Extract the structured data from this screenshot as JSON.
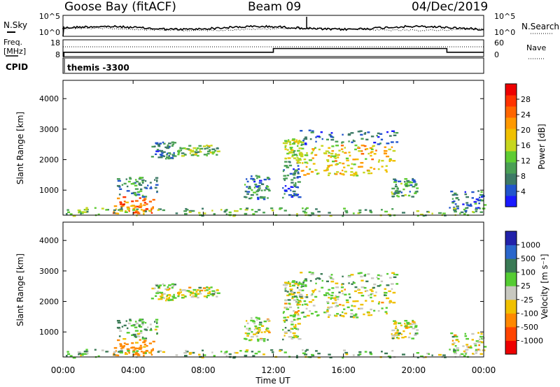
{
  "header": {
    "station": "Goose Bay (fitACF)",
    "beam": "Beam 09",
    "date": "04/Dec/2019"
  },
  "panels": {
    "noise": {
      "left_label": "N.Sky",
      "right_label": "N.Search",
      "left_ticks": [
        "10^5",
        "10^0"
      ],
      "right_ticks": [
        "10^5",
        "10^0"
      ]
    },
    "freq": {
      "left_label_1": "Freq.",
      "left_label_2": "[MHz]",
      "right_label": "Nave",
      "left_ticks": [
        "18",
        "8"
      ],
      "right_ticks": [
        "60",
        "0"
      ]
    },
    "cpid": {
      "label": "CPID",
      "value": "themis -3300"
    }
  },
  "axes": {
    "ylabel": "Slant Range [km]",
    "xlabel": "Time UT",
    "xticks": [
      "00:00",
      "04:00",
      "08:00",
      "12:00",
      "16:00",
      "20:00",
      "00:00"
    ],
    "yticks": [
      "1000",
      "2000",
      "3000",
      "4000"
    ]
  },
  "colorbars": {
    "power": {
      "label": "Power [dB]",
      "ticks": [
        "4",
        "8",
        "12",
        "16",
        "20",
        "24",
        "28"
      ],
      "colors": [
        "#1a1aff",
        "#2255cc",
        "#3d7a66",
        "#4a9f55",
        "#5fcc33",
        "#c6d61f",
        "#f0c000",
        "#ff9900",
        "#ff6600",
        "#ff3300",
        "#ee0000"
      ]
    },
    "velocity": {
      "label": "Velocity [m s⁻¹]",
      "ticks": [
        "1000",
        "500",
        "100",
        "25",
        "-25",
        "-100",
        "-500",
        "-1000"
      ],
      "colors": [
        "#2222aa",
        "#2a66cc",
        "#3a7a55",
        "#55cc33",
        "#c8c8c0",
        "#f0c000",
        "#ff8800",
        "#ff4400",
        "#ee0000"
      ]
    }
  },
  "chart_data": {
    "type": "heatmap",
    "x_range_hours": [
      0,
      24
    ],
    "y_range_km": [
      180,
      4600
    ],
    "power_scale_db": [
      0,
      30
    ],
    "velocity_scale_ms": [
      -1000,
      1000
    ],
    "noise_log10": [
      0,
      5
    ],
    "freq_mhz_range": [
      8,
      18
    ],
    "nave_range": [
      0,
      60
    ],
    "freq_segments": [
      {
        "start": 0.0,
        "end": 0.05,
        "mhz": 8
      },
      {
        "start": 0.05,
        "end": 12.0,
        "mhz": 10.6
      },
      {
        "start": 12.0,
        "end": 21.9,
        "mhz": 12.8
      },
      {
        "start": 21.9,
        "end": 24.0,
        "mhz": 10.6
      }
    ],
    "echo_regions": [
      {
        "t0": 2.8,
        "t1": 5.2,
        "r0": 250,
        "r1": 800,
        "p": 23,
        "v": -200
      },
      {
        "t0": 3.0,
        "t1": 5.4,
        "r0": 800,
        "r1": 1500,
        "p": 8,
        "v": 80
      },
      {
        "t0": 5.0,
        "t1": 6.3,
        "r0": 2050,
        "r1": 2600,
        "p": 7,
        "v": 0
      },
      {
        "t0": 6.5,
        "t1": 8.8,
        "r0": 2150,
        "r1": 2500,
        "p": 12,
        "v": 0
      },
      {
        "t0": 10.3,
        "t1": 11.8,
        "r0": 700,
        "r1": 1500,
        "p": 7,
        "v": 0
      },
      {
        "t0": 12.5,
        "t1": 13.4,
        "r0": 700,
        "r1": 2000,
        "p": 6,
        "v": 0
      },
      {
        "t0": 12.5,
        "t1": 13.6,
        "r0": 2000,
        "r1": 2700,
        "p": 14,
        "v": 30
      },
      {
        "t0": 13.3,
        "t1": 16.8,
        "r0": 1500,
        "r1": 2500,
        "p": 16,
        "v": 0
      },
      {
        "t0": 15.0,
        "t1": 18.8,
        "r0": 1500,
        "r1": 2500,
        "p": 18,
        "v": 0
      },
      {
        "t0": 13.5,
        "t1": 19.0,
        "r0": 2500,
        "r1": 3000,
        "p": 6,
        "v": 60
      },
      {
        "t0": 18.7,
        "t1": 20.2,
        "r0": 800,
        "r1": 1400,
        "p": 9,
        "v": 0
      },
      {
        "t0": 22.0,
        "t1": 24.0,
        "r0": 300,
        "r1": 1000,
        "p": 7,
        "v": 0
      },
      {
        "t0": 0.0,
        "t1": 24.0,
        "r0": 180,
        "r1": 450,
        "p": 11,
        "v": 50
      }
    ]
  }
}
